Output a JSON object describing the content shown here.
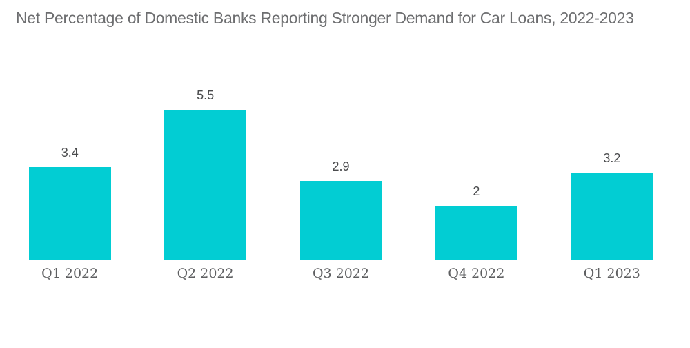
{
  "page": {
    "background": "#FFFFFF"
  },
  "chart_data": {
    "type": "bar",
    "title": "Net Percentage of Domestic Banks Reporting Stronger Demand for Car Loans, 2022-2023",
    "categories": [
      "Q1 2022",
      "Q2 2022",
      "Q3 2022",
      "Q4 2022",
      "Q1 2023"
    ],
    "values": [
      3.4,
      5.5,
      2.9,
      2,
      3.2
    ],
    "value_labels": [
      "3.4",
      "5.5",
      "2.9",
      "2",
      "3.2"
    ],
    "xlabel": "",
    "ylabel": "",
    "ylim": [
      0,
      5.5
    ],
    "grid": false,
    "legend": false,
    "axis_lines": false,
    "bar_color": "#02CDD3",
    "title_color": "#6D6E70",
    "value_label_color": "#4A4B4D",
    "category_label_color": "#5E5F61"
  }
}
